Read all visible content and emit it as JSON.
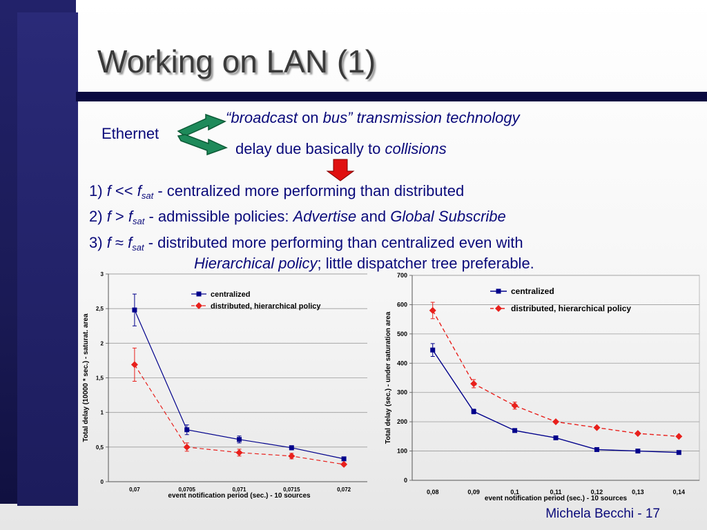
{
  "slide": {
    "title": "Working on LAN (1)",
    "ethernet": "Ethernet",
    "line1": {
      "q1": "“",
      "broadcast": "broadcast",
      "on": " on ",
      "bus": "bus”",
      "tech": "  transmission technology"
    },
    "line2": {
      "pre": "delay due basically to ",
      "collisions": "collisions"
    },
    "item1": {
      "num": "1) ",
      "f": "f",
      "op": " << ",
      "fsat": "f",
      "sat": "sat",
      "dash": " - ",
      "text": "centralized more performing than distributed"
    },
    "item2": {
      "num": "2) ",
      "f": "f",
      "op": "  >  ",
      "fsat": "f",
      "sat": "sat",
      "dash": " - ",
      "pre": "admissible policies: ",
      "advertise": "Advertise",
      "and": " and ",
      "global": "Global Subscribe"
    },
    "item3": {
      "num": "3) ",
      "f": "f",
      "op": "  ≈  ",
      "fsat": "f",
      "sat": "sat",
      "dash": " - ",
      "text": "distributed more performing than centralized even with",
      "hier": "Hierarchical policy",
      "rest": "; little dispatcher tree preferable."
    },
    "footer": "Michela Becchi - 17",
    "colors": {
      "sidebar": "#1c1c5c",
      "rule": "#0a0a40",
      "arrow_green": "#1e8a5a",
      "arrow_red": "#e01010",
      "centralized": "#00008b",
      "distributed": "#e8201c"
    }
  },
  "chart_data": [
    {
      "type": "line",
      "xlabel": "event notification period (sec.) - 10 sources",
      "ylabel": "Total delay (10000 * sec.) - saturat. area",
      "categories": [
        "0,07",
        "0,0705",
        "0,071",
        "0,0715",
        "0,072"
      ],
      "yticks": [
        "0",
        "0,5",
        "1",
        "1,5",
        "2",
        "2,5",
        "3"
      ],
      "ylim": [
        0,
        3
      ],
      "grid": true,
      "legend_position": "top-right",
      "series": [
        {
          "name": "centralized",
          "values": [
            2.48,
            0.75,
            0.61,
            0.49,
            0.33
          ],
          "err": [
            0.23,
            0.07,
            0.05,
            0.03,
            0.02
          ],
          "marker": "square",
          "dash": "solid",
          "color": "#00008b"
        },
        {
          "name": "distributed, hierarchical policy",
          "values": [
            1.69,
            0.5,
            0.42,
            0.37,
            0.25
          ],
          "err": [
            0.24,
            0.06,
            0.05,
            0.04,
            0.02
          ],
          "marker": "diamond",
          "dash": "dashed",
          "color": "#e8201c"
        }
      ]
    },
    {
      "type": "line",
      "xlabel": "event notification period (sec.) - 10 sources",
      "ylabel": "Total delay (sec.) - under saturation area",
      "categories": [
        "0,08",
        "0,09",
        "0,1",
        "0,11",
        "0,12",
        "0,13",
        "0,14"
      ],
      "yticks": [
        "0",
        "100",
        "200",
        "300",
        "400",
        "500",
        "600",
        "700"
      ],
      "ylim": [
        0,
        700
      ],
      "grid": true,
      "legend_position": "top-right",
      "series": [
        {
          "name": "centralized",
          "values": [
            445,
            235,
            170,
            145,
            105,
            100,
            95
          ],
          "err": [
            22,
            8,
            0,
            0,
            0,
            0,
            0
          ],
          "marker": "square",
          "dash": "solid",
          "color": "#00008b"
        },
        {
          "name": "distributed, hierarchical policy",
          "values": [
            580,
            330,
            255,
            200,
            180,
            160,
            150
          ],
          "err": [
            28,
            14,
            12,
            0,
            0,
            0,
            0
          ],
          "marker": "diamond",
          "dash": "dashed",
          "color": "#e8201c"
        }
      ]
    }
  ]
}
